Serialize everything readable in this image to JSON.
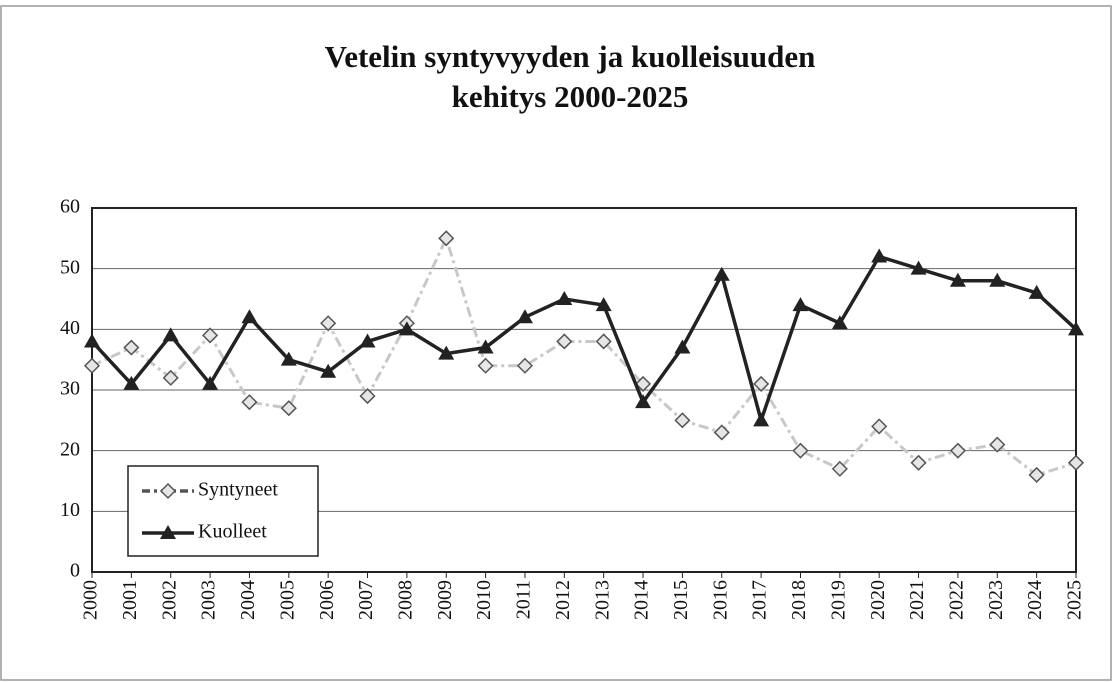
{
  "chart_data": {
    "type": "line",
    "title": [
      "Vetelin syntyvyyden ja kuolleisuuden",
      "kehitys 2000-2025"
    ],
    "categories": [
      "2000",
      "2001",
      "2002",
      "2003",
      "2004",
      "2005",
      "2006",
      "2007",
      "2008",
      "2009",
      "2010",
      "2011",
      "2012",
      "2013",
      "2014",
      "2015",
      "2016",
      "2017",
      "2018",
      "2019",
      "2020",
      "2021",
      "2022",
      "2023",
      "2024",
      "2025"
    ],
    "series": [
      {
        "name": "Syntyneet",
        "color": "#555555",
        "marker": "diamond",
        "values": [
          34,
          37,
          32,
          39,
          28,
          27,
          41,
          29,
          41,
          55,
          34,
          34,
          38,
          38,
          31,
          25,
          23,
          31,
          20,
          17,
          24,
          18,
          20,
          21,
          16,
          18
        ]
      },
      {
        "name": "Kuolleet",
        "color": "#222222",
        "marker": "triangle",
        "values": [
          38,
          31,
          39,
          31,
          42,
          35,
          33,
          38,
          40,
          36,
          37,
          42,
          45,
          44,
          28,
          37,
          49,
          25,
          44,
          41,
          52,
          50,
          48,
          48,
          46,
          40
        ]
      }
    ],
    "ylim": [
      0,
      60
    ],
    "yticks": [
      0,
      10,
      20,
      30,
      40,
      50,
      60
    ],
    "grid": true,
    "legend": "lower left"
  }
}
